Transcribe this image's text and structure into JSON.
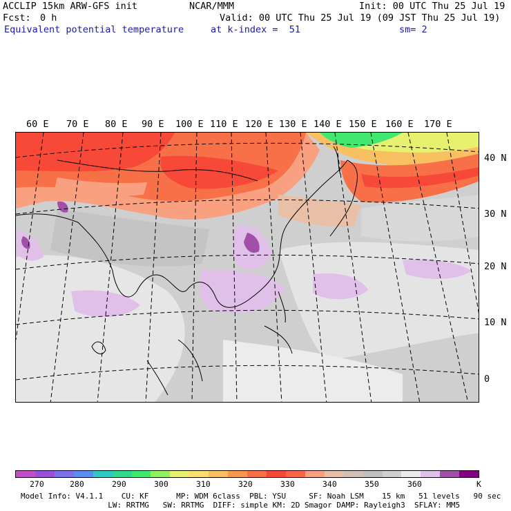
{
  "header": {
    "model": "ACCLIP 15km ARW-GFS init",
    "org": "NCAR/MMM",
    "init": "Init: 00 UTC Thu 25 Jul 19",
    "fcst_label": "Fcst:",
    "fcst_value": "0 h",
    "valid": "Valid: 00 UTC Thu 25 Jul 19 (09 JST Thu 25 Jul 19)",
    "field": "Equivalent potential temperature",
    "level": "at k-index =  51",
    "smoothing": "sm= 2"
  },
  "map": {
    "lon_labels": [
      "60 E",
      "70 E",
      "80 E",
      "90 E",
      "100 E",
      "110 E",
      "120 E",
      "130 E",
      "140 E",
      "150 E",
      "160 E",
      "170 E"
    ],
    "lat_labels": [
      "40 N",
      "30 N",
      "20 N",
      "10 N",
      "0"
    ]
  },
  "colorbar": {
    "colors": [
      "#c050c8",
      "#9a4fd8",
      "#7d72e8",
      "#5a8ef0",
      "#30c8c0",
      "#30d890",
      "#40e870",
      "#90f060",
      "#e8f070",
      "#f8e070",
      "#f8c060",
      "#f89850",
      "#f87048",
      "#f84838",
      "#f86848",
      "#f8a080",
      "#e8c0a8",
      "#d0c0b8",
      "#c0c0c0",
      "#d0d0d0",
      "#ececec",
      "#e0c0e8",
      "#a050a8",
      "#800080"
    ],
    "tick_labels": [
      "270",
      "280",
      "290",
      "300",
      "310",
      "320",
      "330",
      "340",
      "350",
      "360"
    ],
    "unit": "K"
  },
  "footer": {
    "line1": "Model Info: V4.1.1    CU: KF      MP: WDM 6class  PBL: YSU     SF: Noah LSM    15 km   51 levels   90 sec",
    "line2": "  LW: RRTMG   SW: RRTMG  DIFF: simple KM: 2D Smagor DAMP: Rayleigh3  SFLAY: MM5"
  }
}
